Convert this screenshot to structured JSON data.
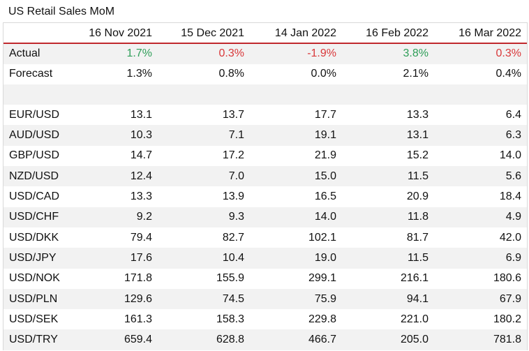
{
  "title": "US Retail Sales MoM",
  "columns": [
    "16 Nov 2021",
    "15 Dec 2021",
    "14 Jan 2022",
    "16 Feb 2022",
    "16 Mar 2022"
  ],
  "actual": {
    "label": "Actual",
    "values": [
      "1.7%",
      "0.3%",
      "-1.9%",
      "3.8%",
      "0.3%"
    ],
    "status": [
      "pos",
      "neg",
      "neg",
      "pos",
      "neg"
    ]
  },
  "forecast": {
    "label": "Forecast",
    "values": [
      "1.3%",
      "0.8%",
      "0.0%",
      "2.1%",
      "0.4%"
    ]
  },
  "pairs": [
    {
      "pair": "EUR/USD",
      "values": [
        "13.1",
        "13.7",
        "17.7",
        "13.3",
        "6.4"
      ]
    },
    {
      "pair": "AUD/USD",
      "values": [
        "10.3",
        "7.1",
        "19.1",
        "13.1",
        "6.3"
      ]
    },
    {
      "pair": "GBP/USD",
      "values": [
        "14.7",
        "17.2",
        "21.9",
        "15.2",
        "14.0"
      ]
    },
    {
      "pair": "NZD/USD",
      "values": [
        "12.4",
        "7.0",
        "15.0",
        "11.5",
        "5.6"
      ]
    },
    {
      "pair": "USD/CAD",
      "values": [
        "13.3",
        "13.9",
        "16.5",
        "20.9",
        "18.4"
      ]
    },
    {
      "pair": "USD/CHF",
      "values": [
        "9.2",
        "9.3",
        "14.0",
        "11.8",
        "4.9"
      ]
    },
    {
      "pair": "USD/DKK",
      "values": [
        "79.4",
        "82.7",
        "102.1",
        "81.7",
        "42.0"
      ]
    },
    {
      "pair": "USD/JPY",
      "values": [
        "17.6",
        "10.4",
        "19.0",
        "11.5",
        "6.9"
      ]
    },
    {
      "pair": "USD/NOK",
      "values": [
        "171.8",
        "155.9",
        "299.1",
        "216.1",
        "180.6"
      ]
    },
    {
      "pair": "USD/PLN",
      "values": [
        "129.6",
        "74.5",
        "75.9",
        "94.1",
        "67.9"
      ]
    },
    {
      "pair": "USD/SEK",
      "values": [
        "161.3",
        "158.3",
        "229.8",
        "221.0",
        "180.2"
      ]
    },
    {
      "pair": "USD/TRY",
      "values": [
        "659.4",
        "628.8",
        "466.7",
        "205.0",
        "781.8"
      ]
    }
  ],
  "colors": {
    "positive": "#2e9e58",
    "negative": "#d9383a",
    "header_rule": "#c0282d",
    "stripe": "#f2f2f2"
  }
}
